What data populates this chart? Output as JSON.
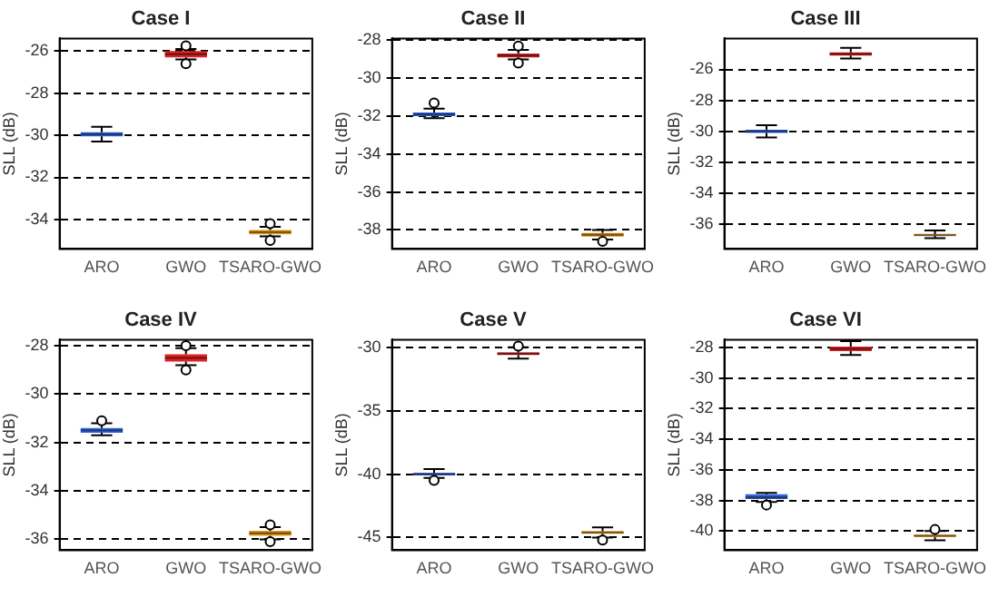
{
  "chart_data": [
    {
      "type": "box",
      "title": "Case I",
      "ylabel": "SLL (dB)",
      "categories": [
        "ARO",
        "GWO",
        "TSARO-GWO"
      ],
      "colors": [
        "#3366dd",
        "#dd2222",
        "#e69a1a"
      ],
      "ylim": [
        -35.4,
        -25.4
      ],
      "yticks": [
        -26,
        -28,
        -30,
        -32,
        -34
      ],
      "grid": "y",
      "boxes": [
        {
          "low": -30.3,
          "q1": -30.05,
          "median": -29.95,
          "q3": -29.85,
          "high": -29.6
        },
        {
          "low": -26.4,
          "q1": -26.3,
          "median": -26.15,
          "q3": -26.0,
          "high": -25.9,
          "outliers": [
            -25.75,
            -26.6
          ]
        },
        {
          "low": -34.8,
          "q1": -34.7,
          "median": -34.6,
          "q3": -34.5,
          "high": -34.35,
          "outliers": [
            -34.2,
            -35.0
          ]
        }
      ]
    },
    {
      "type": "box",
      "title": "Case II",
      "ylabel": "SLL (dB)",
      "categories": [
        "ARO",
        "GWO",
        "TSARO-GWO"
      ],
      "colors": [
        "#3366dd",
        "#dd2222",
        "#e69a1a"
      ],
      "ylim": [
        -39,
        -27.9
      ],
      "yticks": [
        -28,
        -30,
        -32,
        -34,
        -36,
        -38
      ],
      "grid": "y",
      "boxes": [
        {
          "low": -32.1,
          "q1": -32.0,
          "median": -31.9,
          "q3": -31.8,
          "high": -31.6,
          "outliers": [
            -31.3
          ]
        },
        {
          "low": -29.0,
          "q1": -28.9,
          "median": -28.8,
          "q3": -28.7,
          "high": -28.5,
          "outliers": [
            -28.3,
            -29.2
          ]
        },
        {
          "low": -38.5,
          "q1": -38.35,
          "median": -38.25,
          "q3": -38.15,
          "high": -38.0,
          "outliers": [
            -38.6
          ]
        }
      ]
    },
    {
      "type": "box",
      "title": "Case III",
      "ylabel": "SLL (dB)",
      "categories": [
        "ARO",
        "GWO",
        "TSARO-GWO"
      ],
      "colors": [
        "#3366dd",
        "#dd2222",
        "#e69a1a"
      ],
      "ylim": [
        -37.6,
        -24
      ],
      "yticks": [
        -26,
        -28,
        -30,
        -32,
        -34,
        -36
      ],
      "grid": "y",
      "boxes": [
        {
          "low": -30.4,
          "q1": -30.1,
          "median": -30.0,
          "q3": -29.9,
          "high": -29.6
        },
        {
          "low": -25.3,
          "q1": -25.1,
          "median": -25.0,
          "q3": -24.9,
          "high": -24.6
        },
        {
          "low": -36.9,
          "q1": -36.75,
          "median": -36.7,
          "q3": -36.65,
          "high": -36.4
        }
      ]
    },
    {
      "type": "box",
      "title": "Case IV",
      "ylabel": "SLL (dB)",
      "categories": [
        "ARO",
        "GWO",
        "TSARO-GWO"
      ],
      "colors": [
        "#3366dd",
        "#dd2222",
        "#e69a1a"
      ],
      "ylim": [
        -36.45,
        -27.75
      ],
      "yticks": [
        -28,
        -30,
        -32,
        -34,
        -36
      ],
      "grid": "y",
      "boxes": [
        {
          "low": -31.7,
          "q1": -31.6,
          "median": -31.5,
          "q3": -31.4,
          "high": -31.2,
          "outliers": [
            -31.1
          ]
        },
        {
          "low": -28.8,
          "q1": -28.65,
          "median": -28.5,
          "q3": -28.35,
          "high": -28.1,
          "outliers": [
            -28.0,
            -29.0
          ]
        },
        {
          "low": -36.0,
          "q1": -35.85,
          "median": -35.75,
          "q3": -35.65,
          "high": -35.5,
          "outliers": [
            -35.4,
            -36.1
          ]
        }
      ]
    },
    {
      "type": "box",
      "title": "Case V",
      "ylabel": "SLL (dB)",
      "categories": [
        "ARO",
        "GWO",
        "TSARO-GWO"
      ],
      "colors": [
        "#3366dd",
        "#dd2222",
        "#e69a1a"
      ],
      "ylim": [
        -46,
        -29.4
      ],
      "yticks": [
        -30,
        -35,
        -40,
        -45
      ],
      "grid": "y",
      "boxes": [
        {
          "low": -40.3,
          "q1": -40.1,
          "median": -40.0,
          "q3": -39.9,
          "high": -39.6,
          "outliers": [
            -40.5
          ]
        },
        {
          "low": -30.9,
          "q1": -30.6,
          "median": -30.5,
          "q3": -30.4,
          "high": -30.0,
          "outliers": [
            -29.9
          ]
        },
        {
          "low": -45.0,
          "q1": -44.7,
          "median": -44.6,
          "q3": -44.5,
          "high": -44.2,
          "outliers": [
            -45.2
          ]
        }
      ]
    },
    {
      "type": "box",
      "title": "Case VI",
      "ylabel": "SLL (dB)",
      "categories": [
        "ARO",
        "GWO",
        "TSARO-GWO"
      ],
      "colors": [
        "#3366dd",
        "#dd2222",
        "#e69a1a"
      ],
      "ylim": [
        -41.25,
        -27.5
      ],
      "yticks": [
        -28,
        -30,
        -32,
        -34,
        -36,
        -38,
        -40
      ],
      "grid": "y",
      "boxes": [
        {
          "low": -38.1,
          "q1": -37.9,
          "median": -37.8,
          "q3": -37.6,
          "high": -37.5,
          "outliers": [
            -38.3
          ]
        },
        {
          "low": -28.5,
          "q1": -28.25,
          "median": -28.1,
          "q3": -27.95,
          "high": -27.6
        },
        {
          "low": -40.6,
          "q1": -40.4,
          "median": -40.3,
          "q3": -40.25,
          "high": -40.0,
          "outliers": [
            -39.9
          ]
        }
      ]
    }
  ]
}
